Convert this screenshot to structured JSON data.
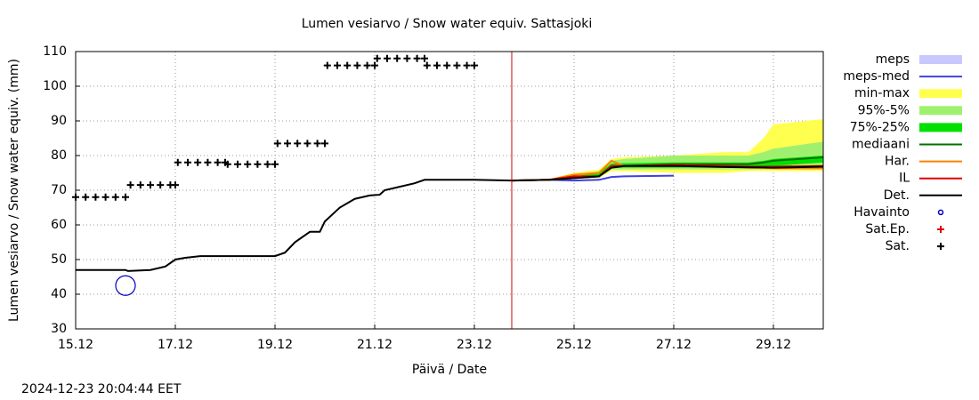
{
  "chart_data": {
    "type": "line",
    "title": "Lumen vesiarvo / Snow water equiv.  Sattasjoki",
    "x_label": "Päivä / Date",
    "y_label": "Lumen vesiarvo / Snow water equiv. (mm)",
    "timestamp": "2024-12-23 20:04:44 EET",
    "xlim": [
      15,
      30
    ],
    "ylim": [
      30,
      110
    ],
    "xticks": [
      {
        "value": 15,
        "label": "15.12"
      },
      {
        "value": 17,
        "label": "17.12"
      },
      {
        "value": 19,
        "label": "19.12"
      },
      {
        "value": 21,
        "label": "21.12"
      },
      {
        "value": 23,
        "label": "23.12"
      },
      {
        "value": 25,
        "label": "25.12"
      },
      {
        "value": 27,
        "label": "27.12"
      },
      {
        "value": 29,
        "label": "29.12"
      }
    ],
    "yticks": [
      30,
      40,
      50,
      60,
      70,
      80,
      90,
      100,
      110
    ],
    "grid": true,
    "vline": {
      "x": 23.75,
      "color": "#cc0000"
    },
    "series": [
      {
        "name": "meps",
        "style": "band",
        "color": "#c8c8ff",
        "x": [
          23.75,
          24.5,
          25,
          25.5,
          25.75,
          26,
          27
        ],
        "low": [
          72.8,
          72.9,
          72.7,
          72.9,
          73.6,
          73.8,
          74
        ],
        "high": [
          72.8,
          73.1,
          73,
          73.2,
          74,
          74.2,
          74.4
        ]
      },
      {
        "name": "meps-med",
        "style": "line",
        "color": "#4040e0",
        "x": [
          23.75,
          24.5,
          25,
          25.5,
          25.75,
          26,
          27
        ],
        "values": [
          72.8,
          73,
          72.8,
          73,
          73.8,
          74,
          74.2
        ]
      },
      {
        "name": "min-max",
        "style": "band",
        "color": "#ffff50",
        "x": [
          23.75,
          24.5,
          25,
          25.5,
          25.75,
          26,
          27,
          28,
          28.5,
          28.8,
          29,
          30
        ],
        "low": [
          72.8,
          73,
          73.3,
          73.5,
          75.5,
          75.5,
          75,
          75,
          75.5,
          75.5,
          75.5,
          75.5
        ],
        "high": [
          72.8,
          73.2,
          75,
          76,
          79,
          79.5,
          80,
          81,
          81,
          85,
          89,
          90.5
        ]
      },
      {
        "name": "95%-5%",
        "style": "band",
        "color": "#a0f070",
        "x": [
          23.75,
          24.5,
          25,
          25.5,
          25.75,
          26,
          27,
          28,
          28.5,
          28.8,
          29,
          30
        ],
        "low": [
          72.8,
          73,
          73.4,
          73.7,
          76,
          76,
          76,
          76,
          76,
          76,
          76,
          76
        ],
        "high": [
          72.8,
          73.1,
          74.5,
          75.5,
          78.5,
          79,
          80,
          80,
          80,
          81,
          82,
          84
        ]
      },
      {
        "name": "75%-25%",
        "style": "band",
        "color": "#00e000",
        "x": [
          23.75,
          24.5,
          25,
          25.5,
          25.75,
          26,
          27,
          28,
          28.5,
          28.8,
          29,
          30
        ],
        "low": [
          72.8,
          73,
          73.4,
          73.8,
          76.3,
          76.5,
          76.5,
          76.5,
          76.5,
          76.7,
          77,
          78
        ],
        "high": [
          72.8,
          73.05,
          74,
          75,
          77.7,
          77.8,
          78,
          78,
          78,
          78.5,
          79,
          80
        ]
      },
      {
        "name": "mediaani",
        "style": "line",
        "color": "#007000",
        "x": [
          23.75,
          24.5,
          25,
          25.5,
          25.75,
          26,
          27,
          28,
          28.5,
          28.8,
          29,
          30
        ],
        "values": [
          72.8,
          73,
          73.5,
          74,
          77,
          77,
          77.5,
          77.5,
          77.5,
          78,
          78.5,
          79.5
        ]
      },
      {
        "name": "Har.",
        "style": "line",
        "color": "#ff8000",
        "x": [
          23.75,
          24.5,
          25,
          25.5,
          25.75,
          26,
          27,
          28,
          28.5,
          28.8,
          29,
          30
        ],
        "values": [
          72.8,
          73,
          74.5,
          75,
          78.5,
          77,
          77,
          77,
          76.5,
          76.5,
          76.3,
          76.3
        ]
      },
      {
        "name": "IL",
        "style": "line",
        "color": "#e00000",
        "x": [
          23.75,
          24.5,
          25,
          25.5,
          25.75,
          26,
          27,
          28,
          28.5,
          28.8,
          29,
          30
        ],
        "values": [
          72.8,
          73,
          74,
          74,
          77,
          77,
          77.3,
          77,
          76.8,
          76.8,
          76.8,
          77
        ]
      },
      {
        "name": "Det.",
        "style": "line",
        "color": "#000000",
        "x": [
          15,
          16,
          16.05,
          16.5,
          16.8,
          17,
          17.2,
          17.5,
          18,
          19,
          19.2,
          19.4,
          19.7,
          19.9,
          20,
          20.3,
          20.6,
          20.9,
          21.1,
          21.2,
          21.5,
          21.8,
          22,
          22.5,
          23,
          23.75,
          24.5,
          25,
          25.5,
          25.75,
          26,
          27,
          28,
          29,
          30
        ],
        "values": [
          47,
          47,
          46.7,
          47,
          48,
          50,
          50.5,
          51,
          51,
          51,
          52,
          55,
          58,
          58,
          61,
          65,
          67.5,
          68.5,
          68.7,
          70,
          71,
          72,
          73,
          73,
          73,
          72.8,
          73,
          73.5,
          74,
          76.5,
          77,
          77,
          76.7,
          76.5,
          76.8
        ]
      },
      {
        "name": "Havainto",
        "style": "circle",
        "color": "#0000c0",
        "x": [
          16
        ],
        "values": [
          42.5
        ]
      },
      {
        "name": "Sat.Ep.",
        "style": "plus",
        "color": "#e00000",
        "x": [],
        "values": []
      },
      {
        "name": "Sat.",
        "style": "plus",
        "color": "#000000",
        "x": [
          15,
          15.2,
          15.4,
          15.6,
          15.8,
          16,
          16.1,
          16.3,
          16.5,
          16.7,
          16.9,
          17,
          17.05,
          17.25,
          17.45,
          17.65,
          17.85,
          18,
          18.05,
          18.25,
          18.45,
          18.65,
          18.85,
          19,
          19.05,
          19.25,
          19.45,
          19.65,
          19.85,
          20,
          20.05,
          20.25,
          20.45,
          20.65,
          20.85,
          21,
          21.05,
          21.25,
          21.45,
          21.65,
          21.85,
          22,
          22.05,
          22.25,
          22.45,
          22.65,
          22.85,
          23
        ],
        "values": [
          68,
          68,
          68,
          68,
          68,
          68,
          71.5,
          71.5,
          71.5,
          71.5,
          71.5,
          71.5,
          78,
          78,
          78,
          78,
          78,
          78,
          77.5,
          77.5,
          77.5,
          77.5,
          77.5,
          77.5,
          83.5,
          83.5,
          83.5,
          83.5,
          83.5,
          83.5,
          106,
          106,
          106,
          106,
          106,
          106,
          108,
          108,
          108,
          108,
          108,
          108,
          106,
          106,
          106,
          106,
          106,
          106
        ]
      }
    ]
  }
}
